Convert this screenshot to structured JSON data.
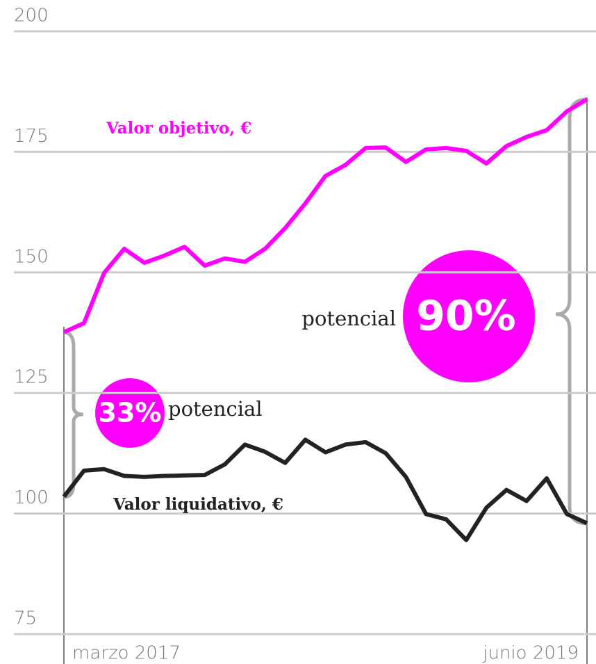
{
  "chart_data": {
    "type": "line",
    "categories": [
      "marzo 2017",
      null,
      null,
      null,
      null,
      null,
      null,
      null,
      null,
      null,
      null,
      null,
      null,
      null,
      null,
      null,
      null,
      null,
      null,
      null,
      null,
      null,
      null,
      null,
      null,
      null,
      "junio 2019"
    ],
    "series": [
      {
        "name": "Valor objetivo, €",
        "color": "#ff00ff",
        "values": [
          137.6,
          139.5,
          149.9,
          154.9,
          152,
          153.5,
          155.3,
          151.4,
          152.9,
          152.2,
          154.9,
          159.2,
          164.3,
          170,
          172.3,
          175.8,
          175.9,
          172.9,
          175.5,
          175.8,
          175.2,
          172.6,
          176.2,
          178.1,
          179.5,
          183.4,
          185.9
        ]
      },
      {
        "name": "Valor liquidativo, €",
        "color": "#222222",
        "values": [
          103.5,
          108.9,
          109.2,
          107.8,
          107.6,
          107.8,
          107.9,
          108,
          110.2,
          114.3,
          112.8,
          110.5,
          115.3,
          112.7,
          114.3,
          114.8,
          112.5,
          107.6,
          99.9,
          98.8,
          94.5,
          101.2,
          104.9,
          102.6,
          107.3,
          99.9,
          98
        ]
      }
    ],
    "annotations": [
      "33%",
      "potencial",
      "90%",
      "potencial"
    ],
    "ylim": [
      75,
      200
    ],
    "yticks": [
      75,
      100,
      125,
      150,
      175,
      200
    ],
    "grid": true
  }
}
